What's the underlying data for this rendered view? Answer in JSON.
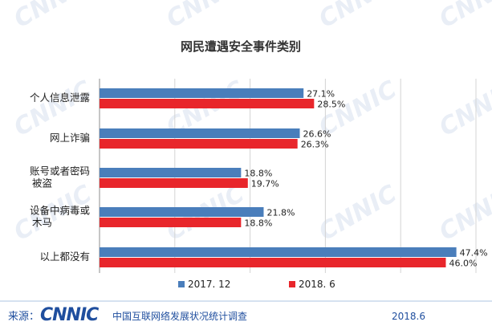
{
  "chart_data": {
    "type": "bar",
    "orientation": "horizontal",
    "title": "网民遭遇安全事件类别",
    "categories": [
      "个人信息泄露",
      "网上诈骗",
      "账号或者密码被盗",
      "设备中病毒或木马",
      "以上都没有"
    ],
    "series": [
      {
        "name": "2017. 12",
        "values": [
          27.1,
          26.6,
          18.8,
          21.8,
          47.4
        ],
        "labels": [
          "27.1%",
          "26.6%",
          "18.8%",
          "21.8%",
          "47.4%"
        ]
      },
      {
        "name": "2018. 6",
        "values": [
          28.5,
          26.3,
          19.7,
          18.8,
          46.0
        ],
        "labels": [
          "28.5%",
          "26.3%",
          "19.7%",
          "18.8%",
          "46.0%"
        ]
      }
    ],
    "xlim": [
      0,
      50
    ],
    "grid": true,
    "legend_position": "bottom"
  },
  "colors": {
    "series_2017": "#4A7EBB",
    "series_2018": "#E8262B",
    "title": "#333333",
    "text": "#222222",
    "grid": "#d4d4d4",
    "footer_line": "#c9d8ec",
    "footer_text": "#1f4e9e",
    "watermark": "#e9eef6"
  },
  "footer": {
    "source_label": "来源：",
    "logo_text": "CNNIC",
    "org_text": "中国互联网络发展状况统计调查",
    "date": "2018.6"
  },
  "watermark_text": "CNNIC"
}
